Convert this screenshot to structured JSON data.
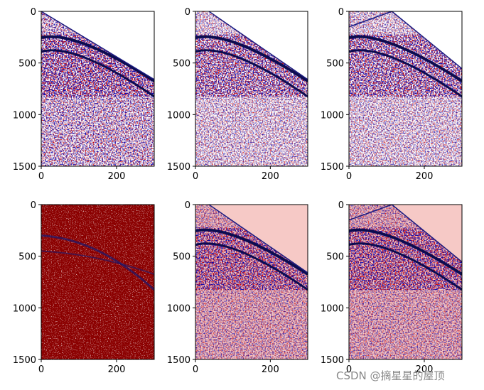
{
  "chart_data": [
    {
      "type": "image",
      "cmap": "seismic",
      "xlim": [
        0,
        300
      ],
      "ylim": [
        1500,
        0
      ],
      "xticks": [
        0,
        200
      ],
      "yticks": [
        0,
        500,
        1000,
        1500
      ]
    },
    {
      "type": "image",
      "cmap": "seismic",
      "xlim": [
        0,
        300
      ],
      "ylim": [
        1500,
        0
      ],
      "xticks": [
        0,
        200
      ],
      "yticks": [
        0,
        500,
        1000,
        1500
      ]
    },
    {
      "type": "image",
      "cmap": "seismic",
      "xlim": [
        0,
        300
      ],
      "ylim": [
        1500,
        0
      ],
      "xticks": [
        0,
        200
      ],
      "yticks": [
        0,
        500,
        1000,
        1500
      ]
    },
    {
      "type": "image",
      "cmap": "seismic",
      "xlim": [
        0,
        300
      ],
      "ylim": [
        1500,
        0
      ],
      "xticks": [
        0,
        200
      ],
      "yticks": [
        0,
        500,
        1000,
        1500
      ]
    },
    {
      "type": "image",
      "cmap": "seismic",
      "xlim": [
        0,
        300
      ],
      "ylim": [
        1500,
        0
      ],
      "xticks": [
        0,
        200
      ],
      "yticks": [
        0,
        500,
        1000,
        1500
      ]
    },
    {
      "type": "image",
      "cmap": "seismic",
      "xlim": [
        0,
        300
      ],
      "ylim": [
        1500,
        0
      ],
      "xticks": [
        0,
        200
      ],
      "yticks": [
        0,
        500,
        1000,
        1500
      ]
    }
  ],
  "watermark": "CSDN @摘星星的屋顶"
}
